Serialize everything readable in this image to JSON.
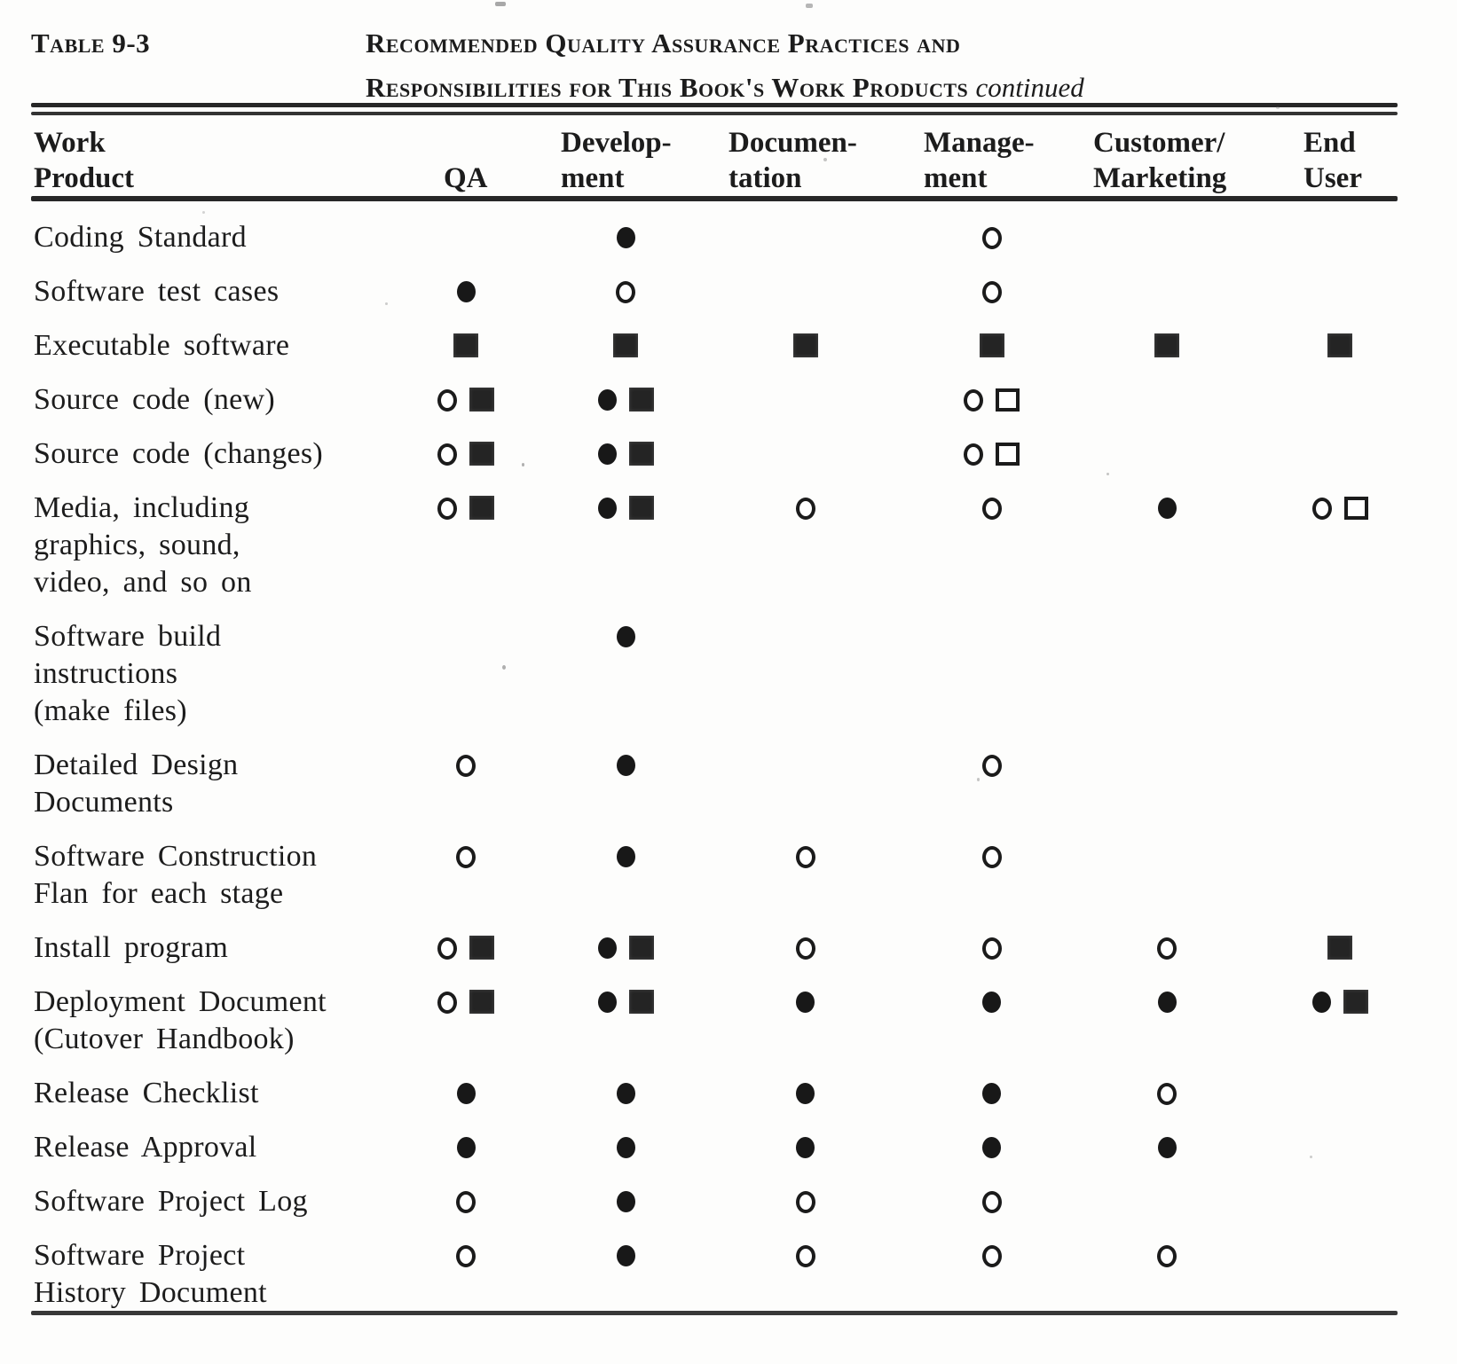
{
  "caption": {
    "label": "Table 9-3",
    "title_line1": "Recommended Quality Assurance Practices and",
    "title_line2": "Responsibilities for This Book's Work Products",
    "continued": "continued"
  },
  "columns": [
    {
      "id": "work-product",
      "line1": "Work",
      "line2": "Product"
    },
    {
      "id": "qa",
      "line1": "",
      "line2": "QA"
    },
    {
      "id": "development",
      "line1": "Develop-",
      "line2": "ment"
    },
    {
      "id": "documentation",
      "line1": "Documen-",
      "line2": "tation"
    },
    {
      "id": "management",
      "line1": "Manage-",
      "line2": "ment"
    },
    {
      "id": "customer-marketing",
      "line1": "Customer/",
      "line2": "Marketing"
    },
    {
      "id": "end-user",
      "line1": "End",
      "line2": "User"
    }
  ],
  "legend": {
    "fc": "filled-circle",
    "oc": "open-circle",
    "fs": "filled-square",
    "os": "open-square"
  },
  "ink_color": "#1c1c1c",
  "background_color": "#fdfdfc",
  "rows": [
    {
      "label_lines": [
        "Coding Standard"
      ],
      "cells": [
        [],
        [
          "fc"
        ],
        [],
        [
          "oc"
        ],
        [],
        []
      ]
    },
    {
      "label_lines": [
        "Software test cases"
      ],
      "cells": [
        [
          "fc"
        ],
        [
          "oc"
        ],
        [],
        [
          "oc"
        ],
        [],
        []
      ]
    },
    {
      "label_lines": [
        "Executable software"
      ],
      "cells": [
        [
          "fs"
        ],
        [
          "fs"
        ],
        [
          "fs"
        ],
        [
          "fs"
        ],
        [
          "fs"
        ],
        [
          "fs"
        ]
      ]
    },
    {
      "label_lines": [
        "Source code (new)"
      ],
      "cells": [
        [
          "oc",
          "fs"
        ],
        [
          "fc",
          "fs"
        ],
        [],
        [
          "oc",
          "os"
        ],
        [],
        []
      ]
    },
    {
      "label_lines": [
        "Source code (changes)"
      ],
      "cells": [
        [
          "oc",
          "fs"
        ],
        [
          "fc",
          "fs"
        ],
        [],
        [
          "oc",
          "os"
        ],
        [],
        []
      ]
    },
    {
      "label_lines": [
        "Media, including",
        "graphics, sound,",
        "video, and so on"
      ],
      "cells": [
        [
          "oc",
          "fs"
        ],
        [
          "fc",
          "fs"
        ],
        [
          "oc"
        ],
        [
          "oc"
        ],
        [
          "fc"
        ],
        [
          "oc",
          "os"
        ]
      ]
    },
    {
      "label_lines": [
        "Software build",
        "instructions",
        "(make files)"
      ],
      "cells": [
        [],
        [
          "fc"
        ],
        [],
        [],
        [],
        []
      ]
    },
    {
      "label_lines": [
        "Detailed Design",
        "Documents"
      ],
      "cells": [
        [
          "oc"
        ],
        [
          "fc"
        ],
        [],
        [
          "oc"
        ],
        [],
        []
      ]
    },
    {
      "label_lines": [
        "Software Construction",
        "Flan for each stage"
      ],
      "cells": [
        [
          "oc"
        ],
        [
          "fc"
        ],
        [
          "oc"
        ],
        [
          "oc"
        ],
        [],
        []
      ]
    },
    {
      "label_lines": [
        "Install program"
      ],
      "cells": [
        [
          "oc",
          "fs"
        ],
        [
          "fc",
          "fs"
        ],
        [
          "oc"
        ],
        [
          "oc"
        ],
        [
          "oc"
        ],
        [
          "fs"
        ]
      ]
    },
    {
      "label_lines": [
        "Deployment Document",
        "(Cutover Handbook)"
      ],
      "cells": [
        [
          "oc",
          "fs"
        ],
        [
          "fc",
          "fs"
        ],
        [
          "fc"
        ],
        [
          "fc"
        ],
        [
          "fc"
        ],
        [
          "fc",
          "fs"
        ]
      ]
    },
    {
      "label_lines": [
        "Release Checklist"
      ],
      "cells": [
        [
          "fc"
        ],
        [
          "fc"
        ],
        [
          "fc"
        ],
        [
          "fc"
        ],
        [
          "oc"
        ],
        []
      ]
    },
    {
      "label_lines": [
        "Release Approval"
      ],
      "cells": [
        [
          "fc"
        ],
        [
          "fc"
        ],
        [
          "fc"
        ],
        [
          "fc"
        ],
        [
          "fc"
        ],
        []
      ]
    },
    {
      "label_lines": [
        "Software Project Log"
      ],
      "cells": [
        [
          "oc"
        ],
        [
          "fc"
        ],
        [
          "oc"
        ],
        [
          "oc"
        ],
        [],
        []
      ]
    },
    {
      "label_lines": [
        "Software Project",
        "History Document"
      ],
      "cells": [
        [
          "oc"
        ],
        [
          "fc"
        ],
        [
          "oc"
        ],
        [
          "oc"
        ],
        [
          "oc"
        ],
        []
      ]
    }
  ]
}
